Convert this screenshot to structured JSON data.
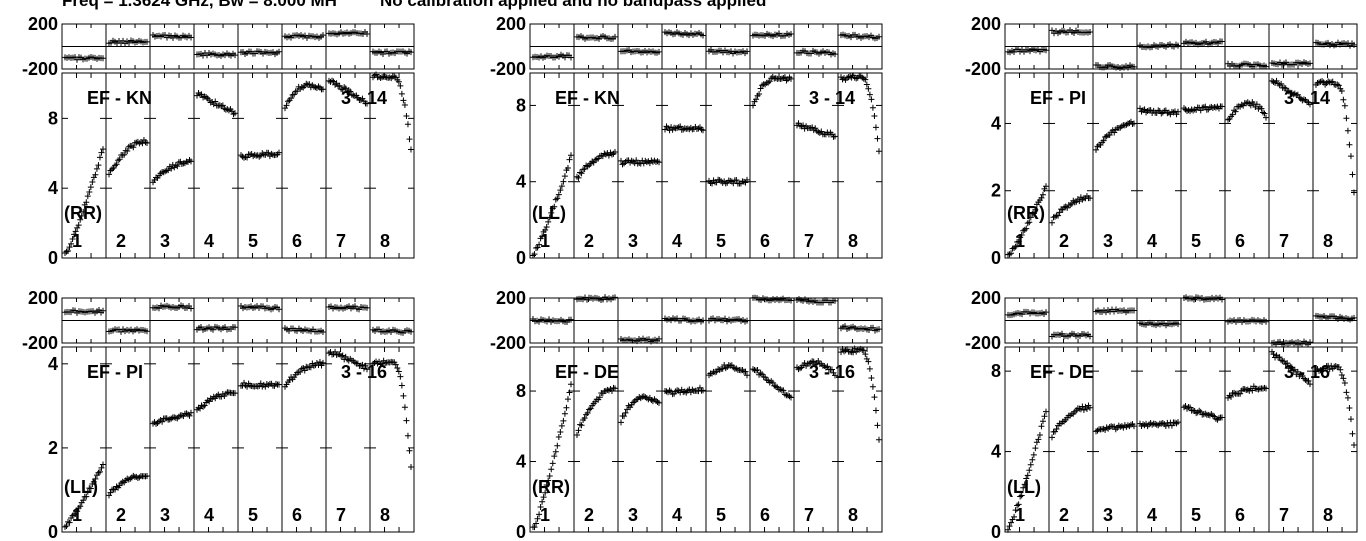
{
  "header": {
    "freq_text": "Freq = 1.3624 GHz, Bw = 8.000 MH",
    "calib_text": "No calibration applied and no bandpass applied"
  },
  "chart_data": [
    {
      "type": "line",
      "baseline": "EF - KN",
      "pol": "(RR)",
      "chan_label": "3 - 14",
      "channels": [
        "1",
        "2",
        "3",
        "4",
        "5",
        "6",
        "7",
        "8"
      ],
      "phase_ylim": [
        -200,
        200
      ],
      "phase_ticks": [
        "200",
        "-200"
      ],
      "amp_ylim": [
        0,
        10.6
      ],
      "amp_ticks": [
        "0",
        "4",
        "8"
      ],
      "phase": [
        [
          -110,
          -95
        ],
        [
          40,
          40
        ],
        [
          90,
          90
        ],
        [
          -70,
          -70
        ],
        [
          -55,
          -55
        ],
        [
          90,
          90
        ],
        [
          120,
          120
        ],
        [
          -55,
          -55
        ]
      ],
      "amplitude": [
        {
          "shape": "rise",
          "start": 0.2,
          "end": 6.3
        },
        {
          "shape": "concave",
          "start": 4.8,
          "end": 6.7
        },
        {
          "shape": "concave",
          "start": 4.4,
          "end": 5.5
        },
        {
          "shape": "decline",
          "start": 9.4,
          "end": 8.3
        },
        {
          "shape": "flat",
          "start": 5.8,
          "end": 6.0
        },
        {
          "shape": "arch",
          "start": 8.6,
          "peak": 9.9,
          "end": 9.6
        },
        {
          "shape": "decline",
          "start": 10.2,
          "end": 8.9
        },
        {
          "shape": "arch",
          "start": 10.4,
          "peak": 10.4,
          "end": 6.2
        }
      ]
    },
    {
      "type": "line",
      "baseline": "EF - KN",
      "pol": "(LL)",
      "chan_label": "3 - 14",
      "channels": [
        "1",
        "2",
        "3",
        "4",
        "5",
        "6",
        "7",
        "8"
      ],
      "phase_ylim": [
        -200,
        200
      ],
      "phase_ticks": [
        "200",
        "-200"
      ],
      "amp_ylim": [
        0,
        9.7
      ],
      "amp_ticks": [
        "0",
        "4",
        "8"
      ],
      "phase": [
        [
          -90,
          -85
        ],
        [
          80,
          80
        ],
        [
          -45,
          -45
        ],
        [
          120,
          110
        ],
        [
          -40,
          -55
        ],
        [
          110,
          100
        ],
        [
          -45,
          -60
        ],
        [
          100,
          80
        ]
      ],
      "amplitude": [
        {
          "shape": "rise",
          "start": 0.2,
          "end": 5.3
        },
        {
          "shape": "concave",
          "start": 4.2,
          "end": 5.5
        },
        {
          "shape": "flat",
          "start": 5.0,
          "end": 5.1
        },
        {
          "shape": "flat",
          "start": 6.8,
          "end": 6.8
        },
        {
          "shape": "flat",
          "start": 4.0,
          "end": 4.0
        },
        {
          "shape": "arch",
          "start": 8.0,
          "peak": 9.4,
          "end": 9.4
        },
        {
          "shape": "decline",
          "start": 7.0,
          "end": 6.4
        },
        {
          "shape": "arch",
          "start": 9.4,
          "peak": 9.5,
          "end": 5.5
        }
      ]
    },
    {
      "type": "line",
      "baseline": "EF - PI",
      "pol": "(RR)",
      "chan_label": "3 - 14",
      "channels": [
        "1",
        "2",
        "3",
        "4",
        "5",
        "6",
        "7",
        "8"
      ],
      "phase_ylim": [
        -200,
        200
      ],
      "phase_ticks": [
        "200",
        "-200"
      ],
      "amp_ylim": [
        0,
        5.5
      ],
      "amp_ticks": [
        "0",
        "2",
        "4"
      ],
      "phase": [
        [
          -40,
          -30
        ],
        [
          130,
          135
        ],
        [
          -175,
          -180
        ],
        [
          0,
          10
        ],
        [
          30,
          35
        ],
        [
          -160,
          -170
        ],
        [
          -150,
          -150
        ],
        [
          30,
          15
        ]
      ],
      "amplitude": [
        {
          "shape": "rise",
          "start": 0.1,
          "end": 2.1
        },
        {
          "shape": "concave",
          "start": 1.1,
          "end": 1.8
        },
        {
          "shape": "concave",
          "start": 3.2,
          "end": 4.0
        },
        {
          "shape": "flat",
          "start": 4.4,
          "end": 4.3
        },
        {
          "shape": "flat",
          "start": 4.4,
          "end": 4.5
        },
        {
          "shape": "arch",
          "start": 4.1,
          "peak": 4.6,
          "end": 4.2
        },
        {
          "shape": "decline",
          "start": 5.3,
          "end": 4.6
        },
        {
          "shape": "arch",
          "start": 5.2,
          "peak": 5.2,
          "end": 1.9
        }
      ]
    },
    {
      "type": "line",
      "baseline": "EF - PI",
      "pol": "(LL)",
      "chan_label": "3 - 16",
      "channels": [
        "1",
        "2",
        "3",
        "4",
        "5",
        "6",
        "7",
        "8"
      ],
      "phase_ylim": [
        -200,
        200
      ],
      "phase_ticks": [
        "200",
        "-200"
      ],
      "amp_ylim": [
        0,
        4.4
      ],
      "amp_ticks": [
        "0",
        "2",
        "4"
      ],
      "phase": [
        [
          80,
          80
        ],
        [
          -90,
          -90
        ],
        [
          120,
          120
        ],
        [
          -70,
          -70
        ],
        [
          120,
          110
        ],
        [
          -80,
          -90
        ],
        [
          120,
          110
        ],
        [
          -90,
          -100
        ]
      ],
      "amplitude": [
        {
          "shape": "rise",
          "start": 0.15,
          "end": 1.6
        },
        {
          "shape": "concave",
          "start": 0.9,
          "end": 1.35
        },
        {
          "shape": "flat",
          "start": 2.6,
          "end": 2.8
        },
        {
          "shape": "concave",
          "start": 2.9,
          "end": 3.3
        },
        {
          "shape": "flat",
          "start": 3.5,
          "end": 3.5
        },
        {
          "shape": "concave",
          "start": 3.5,
          "end": 4.0
        },
        {
          "shape": "decline",
          "start": 4.3,
          "end": 3.9
        },
        {
          "shape": "arch",
          "start": 4.0,
          "peak": 4.05,
          "end": 1.5
        }
      ]
    },
    {
      "type": "line",
      "baseline": "EF - DE",
      "pol": "(RR)",
      "chan_label": "3 - 16",
      "channels": [
        "1",
        "2",
        "3",
        "4",
        "5",
        "6",
        "7",
        "8"
      ],
      "phase_ylim": [
        -200,
        200
      ],
      "phase_ticks": [
        "200",
        "-200"
      ],
      "amp_ylim": [
        0,
        10.5
      ],
      "amp_ticks": [
        "0",
        "4",
        "8"
      ],
      "phase": [
        [
          0,
          0
        ],
        [
          195,
          195
        ],
        [
          -170,
          -175
        ],
        [
          10,
          0
        ],
        [
          10,
          0
        ],
        [
          195,
          185
        ],
        [
          180,
          165
        ],
        [
          -60,
          -80
        ]
      ],
      "amplitude": [
        {
          "shape": "rise",
          "start": 0.2,
          "end": 8.3
        },
        {
          "shape": "concave",
          "start": 5.6,
          "end": 8.1
        },
        {
          "shape": "arch",
          "start": 6.3,
          "peak": 7.6,
          "end": 7.4
        },
        {
          "shape": "flat",
          "start": 7.9,
          "end": 8.1
        },
        {
          "shape": "arch",
          "start": 8.9,
          "peak": 9.4,
          "end": 9.0
        },
        {
          "shape": "decline",
          "start": 9.3,
          "end": 7.6
        },
        {
          "shape": "arch",
          "start": 9.3,
          "peak": 9.6,
          "end": 8.9
        },
        {
          "shape": "arch",
          "start": 10.3,
          "peak": 10.3,
          "end": 5.3
        }
      ]
    },
    {
      "type": "line",
      "baseline": "EF - DE",
      "pol": "(LL)",
      "chan_label": "3 - 16",
      "channels": [
        "1",
        "2",
        "3",
        "4",
        "5",
        "6",
        "7",
        "8"
      ],
      "phase_ylim": [
        -200,
        200
      ],
      "phase_ticks": [
        "200",
        "-200"
      ],
      "amp_ylim": [
        0,
        9.2
      ],
      "amp_ticks": [
        "0",
        "4",
        "8"
      ],
      "phase": [
        [
          60,
          70
        ],
        [
          -130,
          -130
        ],
        [
          80,
          90
        ],
        [
          -30,
          -30
        ],
        [
          195,
          195
        ],
        [
          0,
          0
        ],
        [
          -200,
          -200
        ],
        [
          30,
          20
        ]
      ],
      "amplitude": [
        {
          "shape": "rise",
          "start": 0.2,
          "end": 6.0
        },
        {
          "shape": "concave",
          "start": 4.8,
          "end": 6.2
        },
        {
          "shape": "flat",
          "start": 5.1,
          "end": 5.3
        },
        {
          "shape": "flat",
          "start": 5.3,
          "end": 5.4
        },
        {
          "shape": "decline",
          "start": 6.2,
          "end": 5.6
        },
        {
          "shape": "concave",
          "start": 6.7,
          "end": 7.2
        },
        {
          "shape": "decline",
          "start": 8.9,
          "end": 7.4
        },
        {
          "shape": "arch",
          "start": 8.0,
          "peak": 8.2,
          "end": 4.3
        }
      ]
    }
  ]
}
